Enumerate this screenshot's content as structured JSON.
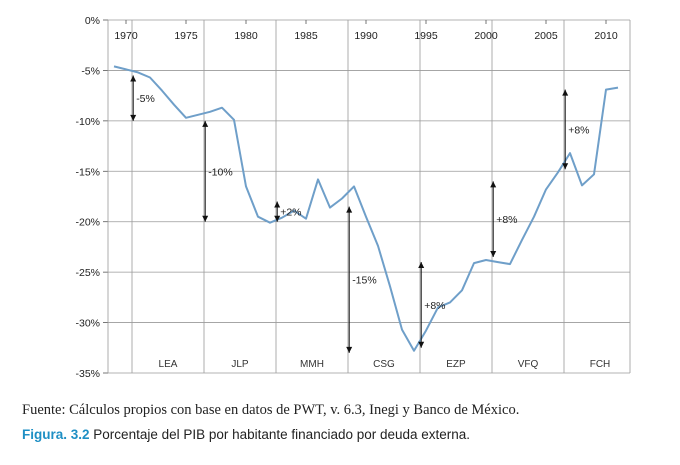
{
  "chart_data": {
    "type": "line",
    "title": "",
    "xlabel": "",
    "ylabel": "",
    "xlim": [
      1968.5,
      2012
    ],
    "ylim": [
      -35,
      0
    ],
    "x_ticks": [
      1970,
      1975,
      1980,
      1985,
      1990,
      1995,
      2000,
      2005,
      2010
    ],
    "y_ticks": [
      0,
      -5,
      -10,
      -15,
      -20,
      -25,
      -30,
      -35
    ],
    "x_tick_labels": [
      "1970",
      "1975",
      "1980",
      "1985",
      "1990",
      "1995",
      "2000",
      "2005",
      "2010"
    ],
    "y_tick_labels": [
      "0%",
      "-5%",
      "-10%",
      "-15%",
      "-20%",
      "-25%",
      "-30%",
      "-35%"
    ],
    "grid": true,
    "series": [
      {
        "color": "#6f9fc9",
        "x": [
          1969,
          1970,
          1971,
          1972,
          1973,
          1974,
          1975,
          1976,
          1977,
          1978,
          1979,
          1980,
          1981,
          1982,
          1983,
          1984,
          1985,
          1986,
          1987,
          1988,
          1989,
          1990,
          1991,
          1992,
          1993,
          1994,
          1995,
          1996,
          1997,
          1998,
          1999,
          2000,
          2001,
          2002,
          2003,
          2004,
          2005,
          2006,
          2007,
          2008,
          2009,
          2010,
          2011
        ],
        "y": [
          -4.6,
          -4.9,
          -5.2,
          -5.7,
          -7.0,
          -8.4,
          -9.7,
          -9.4,
          -9.1,
          -8.7,
          -9.9,
          -16.5,
          -19.5,
          -20.1,
          -19.6,
          -18.9,
          -19.7,
          -15.8,
          -18.6,
          -17.7,
          -16.5,
          -19.5,
          -22.4,
          -26.4,
          -30.7,
          -32.8,
          -30.8,
          -28.5,
          -28.0,
          -26.8,
          -24.1,
          -23.8,
          -24.0,
          -24.2,
          -21.8,
          -19.5,
          -16.8,
          -15.1,
          -13.2,
          -16.4,
          -15.3,
          -6.9,
          -6.7
        ]
      }
    ],
    "period_dividers": [
      1970.5,
      1976.5,
      1982.5,
      1988.5,
      1994.5,
      2000.5,
      2006.5
    ],
    "periods": [
      {
        "label": "LEA",
        "x": 1973.5
      },
      {
        "label": "JLP",
        "x": 1979.5
      },
      {
        "label": "MMH",
        "x": 1985.5
      },
      {
        "label": "CSG",
        "x": 1991.5
      },
      {
        "label": "EZP",
        "x": 1997.5
      },
      {
        "label": "VFQ",
        "x": 2003.5
      },
      {
        "label": "FCH",
        "x": 2009.5
      }
    ],
    "annotations": [
      {
        "label": "-5%",
        "x": 1970.6,
        "y_from": -5.5,
        "y_to": -10
      },
      {
        "label": "-10%",
        "x": 1976.6,
        "y_from": -10,
        "y_to": -20
      },
      {
        "label": "+2%",
        "x": 1982.6,
        "y_from": -20,
        "y_to": -18
      },
      {
        "label": "-15%",
        "x": 1988.6,
        "y_from": -18.5,
        "y_to": -33
      },
      {
        "label": "+8%",
        "x": 1994.6,
        "y_from": -32.5,
        "y_to": -24
      },
      {
        "label": "+8%",
        "x": 2000.6,
        "y_from": -23.5,
        "y_to": -16
      },
      {
        "label": "+8%",
        "x": 2006.6,
        "y_from": -14.8,
        "y_to": -6.9
      }
    ]
  },
  "source": "Fuente: Cálculos propios con base en datos de PWT, v. 6.3, Inegi y Banco de México.",
  "caption": {
    "figure_label": "Figura. 3.2",
    "text": "Porcentaje del PIB por habitante financiado por deuda externa."
  },
  "colors": {
    "line": "#6f9fc9",
    "caption_label": "#1e8fc4",
    "grid": "#9a9a9a"
  }
}
